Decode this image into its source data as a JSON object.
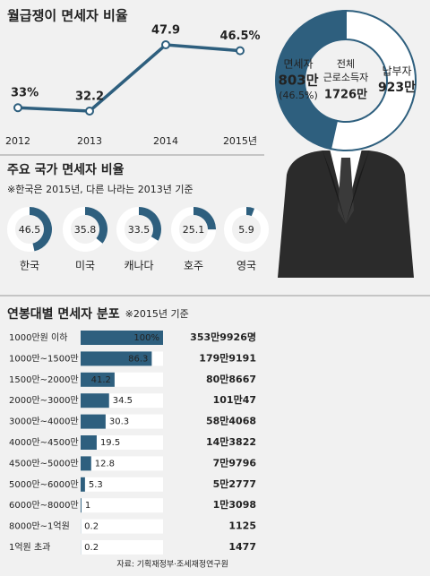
{
  "chart_data": [
    {
      "type": "line",
      "title": "월급쟁이 면세자 비율",
      "categories": [
        "2012",
        "2013",
        "2014",
        "2015년"
      ],
      "values": [
        33,
        32.2,
        47.9,
        46.5
      ],
      "value_labels": [
        "33%",
        "32.2",
        "47.9",
        "46.5%"
      ],
      "color": "#2e5f7e"
    },
    {
      "type": "pie",
      "categories": [
        "면세자",
        "납부자"
      ],
      "values": [
        803,
        923
      ],
      "value_labels": [
        "803만",
        "923만"
      ],
      "share_label": "(46.5%)",
      "center_title": [
        "전체",
        "근로소득자"
      ],
      "center_label": "1726만",
      "colors": [
        "#2e5f7e",
        "#ffffff"
      ]
    },
    {
      "type": "donut",
      "title": "주요 국가 면세자 비율",
      "subtitle": "※한국은 2015년, 다른 나라는 2013년 기준",
      "categories": [
        "한국",
        "미국",
        "캐나다",
        "호주",
        "영국"
      ],
      "values": [
        46.5,
        35.8,
        33.5,
        25.1,
        5.9
      ],
      "color": "#2e5f7e"
    },
    {
      "type": "hbar",
      "title": "연봉대별 면세자 분포",
      "subtitle": "※2015년 기준",
      "categories": [
        "1000만원 이하",
        "1000만~1500만",
        "1500만~2000만",
        "2000만~3000만",
        "3000만~4000만",
        "4000만~4500만",
        "4500만~5000만",
        "5000만~6000만",
        "6000만~8000만",
        "8000만~1억원",
        "1억원 초과"
      ],
      "values": [
        100,
        86.3,
        41.2,
        34.5,
        30.3,
        19.5,
        12.8,
        5.3,
        1,
        0.2,
        0.2
      ],
      "value_labels": [
        "100%",
        "86.3",
        "41.2",
        "34.5",
        "30.3",
        "19.5",
        "12.8",
        "5.3",
        "1",
        "0.2",
        "0.2"
      ],
      "count_labels": [
        "353만9926명",
        "179만9191",
        "80만8667",
        "101만47",
        "58만4068",
        "14만3822",
        "7만9796",
        "5만2777",
        "1만3098",
        "1125",
        "1477"
      ],
      "xlim": [
        0,
        100
      ],
      "color": "#2e5f7e",
      "source": "자료: 기획재정부·조세재정연구원"
    }
  ]
}
